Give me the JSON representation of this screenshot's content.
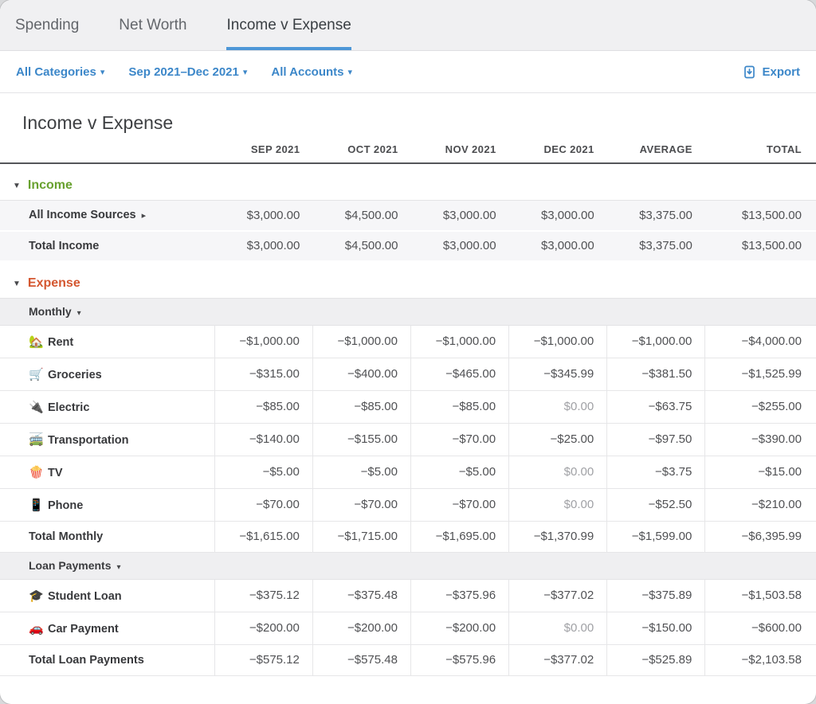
{
  "icons": {
    "caret_down": "▾",
    "collapse_marker": "▼",
    "expand_marker": "▸"
  },
  "theme": {
    "link_blue": "#3c87c9",
    "tab_underline_blue": "#4e97d7",
    "income_green": "#68a12f",
    "expense_orange": "#d45730"
  },
  "tabs": [
    {
      "label": "Spending",
      "active": false
    },
    {
      "label": "Net Worth",
      "active": false
    },
    {
      "label": "Income v Expense",
      "active": true
    }
  ],
  "filters": [
    {
      "label": "All Categories"
    },
    {
      "label": "Sep 2021–Dec 2021"
    },
    {
      "label": "All Accounts"
    }
  ],
  "export_label": "Export",
  "report": {
    "title": "Income v Expense",
    "zero_display": "$0.00"
  },
  "chart_data": {
    "type": "table",
    "title": "Income v Expense",
    "columns": [
      "SEP 2021",
      "OCT 2021",
      "NOV 2021",
      "DEC 2021",
      "AVERAGE",
      "TOTAL"
    ],
    "rows": [
      {
        "kind": "section",
        "label": "Income",
        "accent": "#68a12f"
      },
      {
        "kind": "income-item",
        "label": "All Income Sources",
        "expander": true,
        "values": [
          "$3,000.00",
          "$4,500.00",
          "$3,000.00",
          "$3,000.00",
          "$3,375.00",
          "$13,500.00"
        ]
      },
      {
        "kind": "income-total",
        "label": "Total Income",
        "values": [
          "$3,000.00",
          "$4,500.00",
          "$3,000.00",
          "$3,000.00",
          "$3,375.00",
          "$13,500.00"
        ]
      },
      {
        "kind": "section",
        "label": "Expense",
        "accent": "#d45730"
      },
      {
        "kind": "subheader",
        "label": "Monthly"
      },
      {
        "kind": "category",
        "icon": "🏡",
        "icon_name": "house-garden-icon",
        "label": "Rent",
        "values": [
          "−$1,000.00",
          "−$1,000.00",
          "−$1,000.00",
          "−$1,000.00",
          "−$1,000.00",
          "−$4,000.00"
        ]
      },
      {
        "kind": "category",
        "icon": "🛒",
        "icon_name": "shopping-cart-icon",
        "label": "Groceries",
        "values": [
          "−$315.00",
          "−$400.00",
          "−$465.00",
          "−$345.99",
          "−$381.50",
          "−$1,525.99"
        ]
      },
      {
        "kind": "category",
        "icon": "🔌",
        "icon_name": "electric-plug-icon",
        "label": "Electric",
        "values": [
          "−$85.00",
          "−$85.00",
          "−$85.00",
          "$0.00",
          "−$63.75",
          "−$255.00"
        ]
      },
      {
        "kind": "category",
        "icon": "🚎",
        "icon_name": "trolleybus-icon",
        "label": "Transportation",
        "values": [
          "−$140.00",
          "−$155.00",
          "−$70.00",
          "−$25.00",
          "−$97.50",
          "−$390.00"
        ]
      },
      {
        "kind": "category",
        "icon": "🍿",
        "icon_name": "popcorn-icon",
        "label": "TV",
        "values": [
          "−$5.00",
          "−$5.00",
          "−$5.00",
          "$0.00",
          "−$3.75",
          "−$15.00"
        ]
      },
      {
        "kind": "category",
        "icon": "📱",
        "icon_name": "mobile-phone-icon",
        "label": "Phone",
        "values": [
          "−$70.00",
          "−$70.00",
          "−$70.00",
          "$0.00",
          "−$52.50",
          "−$210.00"
        ]
      },
      {
        "kind": "group-total",
        "label": "Total Monthly",
        "values": [
          "−$1,615.00",
          "−$1,715.00",
          "−$1,695.00",
          "−$1,370.99",
          "−$1,599.00",
          "−$6,395.99"
        ]
      },
      {
        "kind": "subheader",
        "label": "Loan Payments"
      },
      {
        "kind": "category",
        "icon": "🎓",
        "icon_name": "graduation-cap-icon",
        "label": "Student Loan",
        "values": [
          "−$375.12",
          "−$375.48",
          "−$375.96",
          "−$377.02",
          "−$375.89",
          "−$1,503.58"
        ]
      },
      {
        "kind": "category",
        "icon": "🚗",
        "icon_name": "car-icon",
        "label": "Car Payment",
        "values": [
          "−$200.00",
          "−$200.00",
          "−$200.00",
          "$0.00",
          "−$150.00",
          "−$600.00"
        ]
      },
      {
        "kind": "group-total",
        "label": "Total Loan Payments",
        "values": [
          "−$575.12",
          "−$575.48",
          "−$575.96",
          "−$377.02",
          "−$525.89",
          "−$2,103.58"
        ]
      }
    ]
  }
}
